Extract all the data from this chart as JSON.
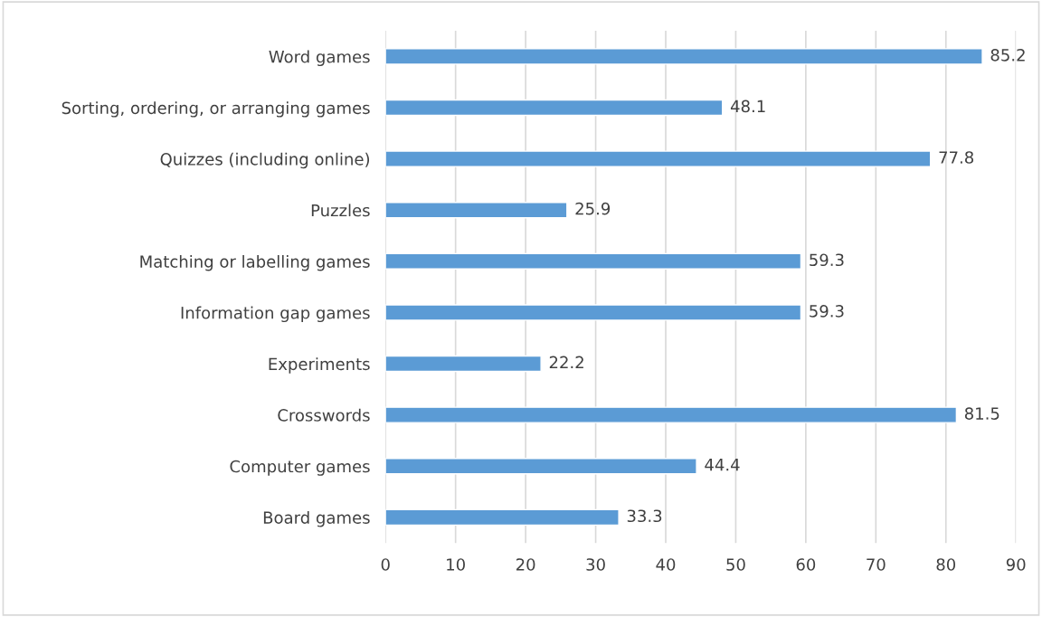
{
  "chart_data": {
    "type": "bar",
    "orientation": "horizontal",
    "categories": [
      "Word games",
      "Sorting, ordering, or arranging games",
      "Quizzes (including online)",
      "Puzzles",
      "Matching or labelling games",
      "Information gap games",
      "Experiments",
      "Crosswords",
      "Computer games",
      "Board games"
    ],
    "values": [
      85.2,
      48.1,
      77.8,
      25.9,
      59.3,
      59.3,
      22.2,
      81.5,
      44.4,
      33.3
    ],
    "color": "#5b9bd5",
    "xlim": [
      0,
      90
    ],
    "xticks": [
      0,
      10,
      20,
      30,
      40,
      50,
      60,
      70,
      80,
      90
    ],
    "grid": "x",
    "data_labels": true
  }
}
